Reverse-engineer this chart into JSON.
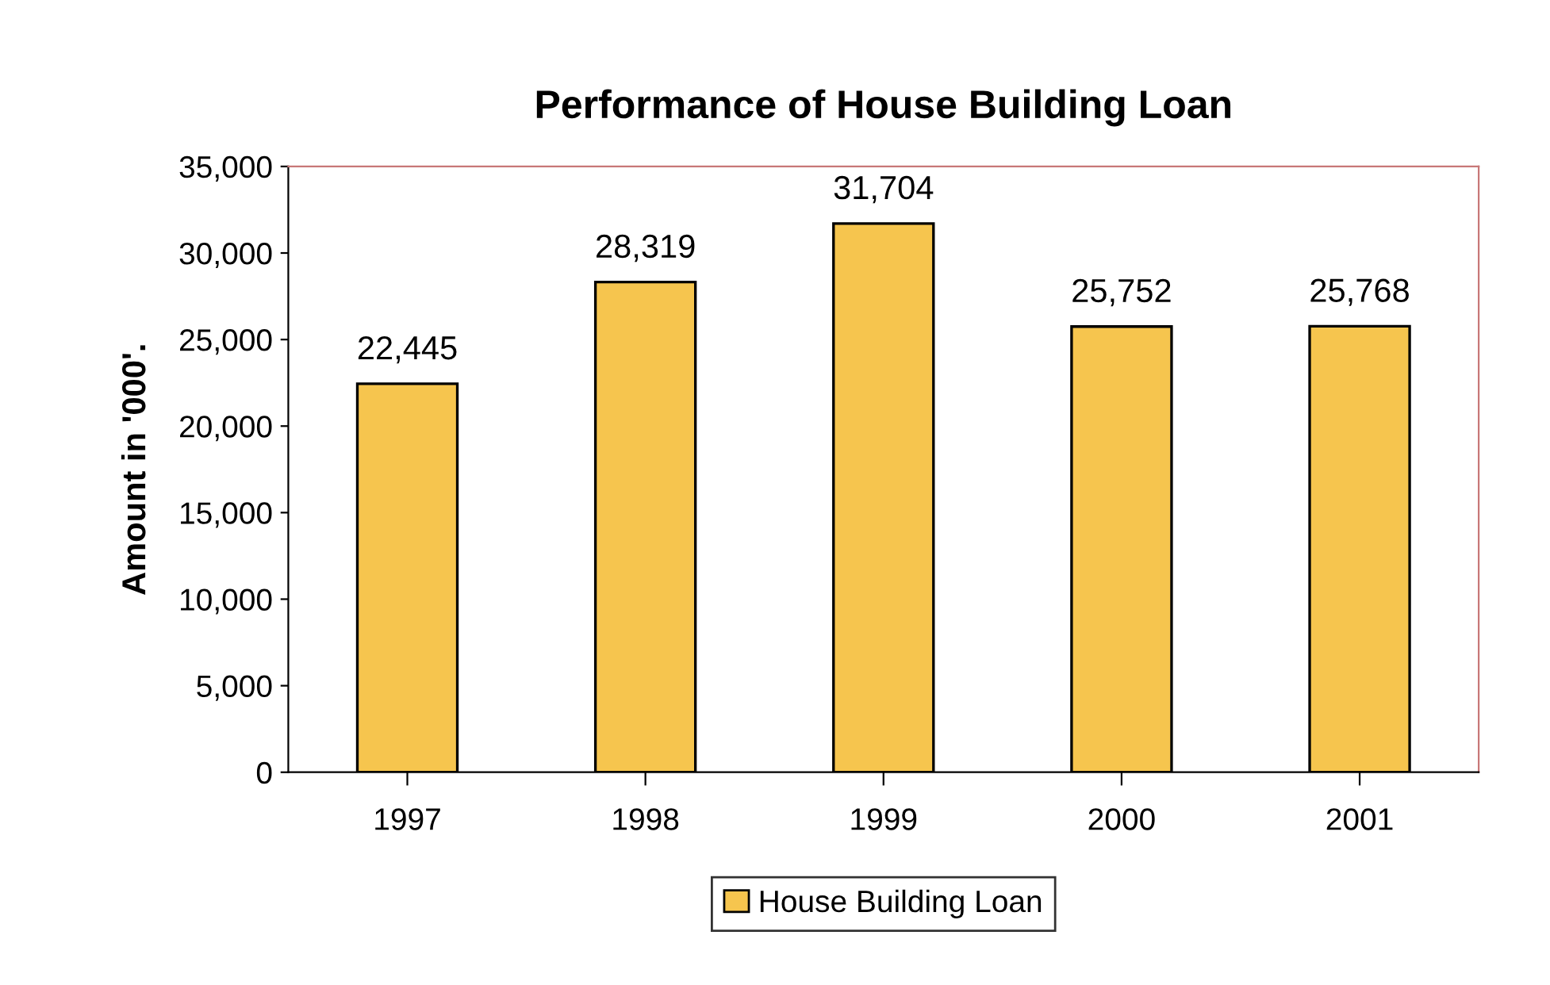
{
  "chart_data": {
    "type": "bar",
    "title": "Performance of House Building Loan",
    "ylabel": "Amount in '000'.",
    "categories": [
      "1997",
      "1998",
      "1999",
      "2000",
      "2001"
    ],
    "series": [
      {
        "name": "House Building Loan",
        "color": "#f6c54e",
        "values": [
          22445,
          28319,
          31704,
          25752,
          25768
        ],
        "value_labels": [
          "22,445",
          "28,319",
          "31,704",
          "25,752",
          "25,768"
        ]
      }
    ],
    "ylim": [
      0,
      35000
    ],
    "yticks": [
      {
        "value": 0,
        "label": "0"
      },
      {
        "value": 5000,
        "label": "5,000"
      },
      {
        "value": 10000,
        "label": "10,000"
      },
      {
        "value": 15000,
        "label": "15,000"
      },
      {
        "value": 20000,
        "label": "20,000"
      },
      {
        "value": 25000,
        "label": "25,000"
      },
      {
        "value": 30000,
        "label": "30,000"
      },
      {
        "value": 35000,
        "label": "35,000"
      }
    ],
    "grid": false,
    "legend": "bottom"
  }
}
